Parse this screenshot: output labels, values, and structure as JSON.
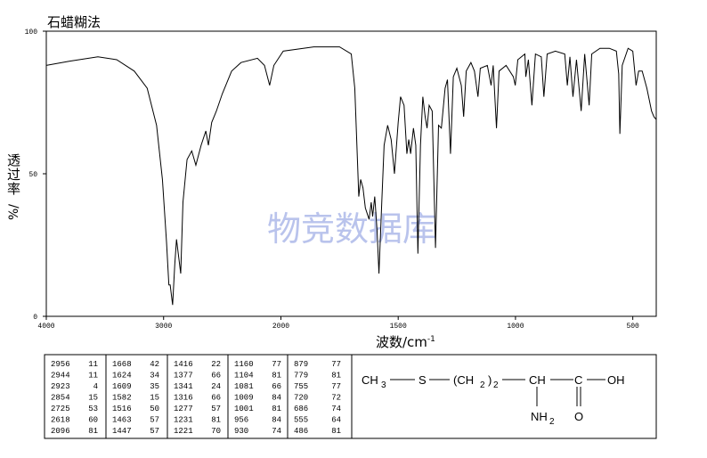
{
  "chart_data": {
    "type": "line",
    "title": "石蜡糊法",
    "ylabel": "透过率",
    "ylabel_unit": "%/",
    "xlabel": "波数/cm",
    "xlabel_sup": "-1",
    "watermark": "物竞数据库",
    "xlim": [
      4000,
      400
    ],
    "xticks": [
      4000,
      3000,
      2000,
      1500,
      1000,
      500
    ],
    "ylim": [
      0,
      100
    ],
    "yticks": [
      0,
      50,
      100
    ],
    "series": [
      {
        "color": "#000000",
        "x": [
          4000,
          3800,
          3560,
          3400,
          3250,
          3140,
          3060,
          3010,
          2975,
          2955,
          2944,
          2935,
          2923,
          2905,
          2890,
          2875,
          2854,
          2835,
          2800,
          2760,
          2725,
          2680,
          2640,
          2618,
          2590,
          2550,
          2500,
          2420,
          2340,
          2200,
          2140,
          2096,
          2060,
          1990,
          1860,
          1750,
          1700,
          1685,
          1668,
          1660,
          1650,
          1640,
          1624,
          1615,
          1609,
          1600,
          1590,
          1582,
          1570,
          1560,
          1545,
          1530,
          1516,
          1500,
          1490,
          1475,
          1463,
          1455,
          1447,
          1435,
          1425,
          1416,
          1405,
          1395,
          1385,
          1377,
          1368,
          1355,
          1341,
          1328,
          1316,
          1300,
          1290,
          1277,
          1265,
          1250,
          1231,
          1221,
          1210,
          1190,
          1175,
          1160,
          1150,
          1120,
          1104,
          1095,
          1081,
          1070,
          1040,
          1009,
          1001,
          990,
          960,
          956,
          945,
          930,
          915,
          890,
          879,
          865,
          830,
          790,
          779,
          768,
          755,
          740,
          720,
          705,
          686,
          675,
          640,
          600,
          570,
          560,
          555,
          545,
          520,
          500,
          486,
          475,
          460,
          440,
          420,
          410,
          400
        ],
        "values": [
          88,
          89.5,
          91,
          90,
          86,
          80,
          67,
          48,
          26,
          11,
          11,
          8,
          4,
          18,
          27,
          22,
          15,
          40,
          55,
          58,
          53,
          60,
          65,
          60,
          68,
          72,
          78,
          86,
          89,
          90.5,
          88,
          81,
          88,
          93,
          94.5,
          94.5,
          92,
          80,
          42,
          48,
          45,
          38,
          34,
          40,
          35,
          42,
          30,
          15,
          40,
          60,
          67,
          62,
          50,
          68,
          77,
          74,
          57,
          62,
          57,
          66,
          60,
          22,
          60,
          77,
          70,
          66,
          74,
          72,
          24,
          67,
          66,
          80,
          83,
          57,
          84,
          87,
          81,
          70,
          86,
          89,
          86,
          77,
          87,
          88,
          81,
          88,
          66,
          86,
          88,
          84,
          81,
          90,
          92,
          84,
          90,
          74,
          92,
          91,
          77,
          92,
          93,
          92,
          81,
          91,
          77,
          90,
          72,
          92,
          74,
          92,
          94,
          94,
          93,
          85,
          64,
          88,
          94,
          93,
          81,
          86,
          86,
          80,
          72,
          70,
          69
        ]
      }
    ]
  },
  "table": {
    "columns": [
      [
        [
          2956,
          11
        ],
        [
          2944,
          11
        ],
        [
          2923,
          4
        ],
        [
          2854,
          15
        ],
        [
          2725,
          53
        ],
        [
          2618,
          60
        ],
        [
          2096,
          81
        ]
      ],
      [
        [
          1668,
          42
        ],
        [
          1624,
          34
        ],
        [
          1609,
          35
        ],
        [
          1582,
          15
        ],
        [
          1516,
          50
        ],
        [
          1463,
          57
        ],
        [
          1447,
          57
        ]
      ],
      [
        [
          1416,
          22
        ],
        [
          1377,
          66
        ],
        [
          1341,
          24
        ],
        [
          1316,
          66
        ],
        [
          1277,
          57
        ],
        [
          1231,
          81
        ],
        [
          1221,
          70
        ]
      ],
      [
        [
          1160,
          77
        ],
        [
          1104,
          81
        ],
        [
          1081,
          66
        ],
        [
          1009,
          84
        ],
        [
          1001,
          81
        ],
        [
          956,
          84
        ],
        [
          930,
          74
        ]
      ],
      [
        [
          879,
          77
        ],
        [
          779,
          81
        ],
        [
          755,
          77
        ],
        [
          720,
          72
        ],
        [
          686,
          74
        ],
        [
          555,
          64
        ],
        [
          486,
          81
        ]
      ]
    ]
  },
  "structure": {
    "ch": "CH",
    "ch_sub": "3",
    "s": "S",
    "paren": "(CH",
    "paren_sub": "2",
    "close": ")",
    "close_sub": "2",
    "ch2": "CH",
    "c": "C",
    "oh": "OH",
    "nh": "NH",
    "nh_sub": "2",
    "o": "O"
  }
}
